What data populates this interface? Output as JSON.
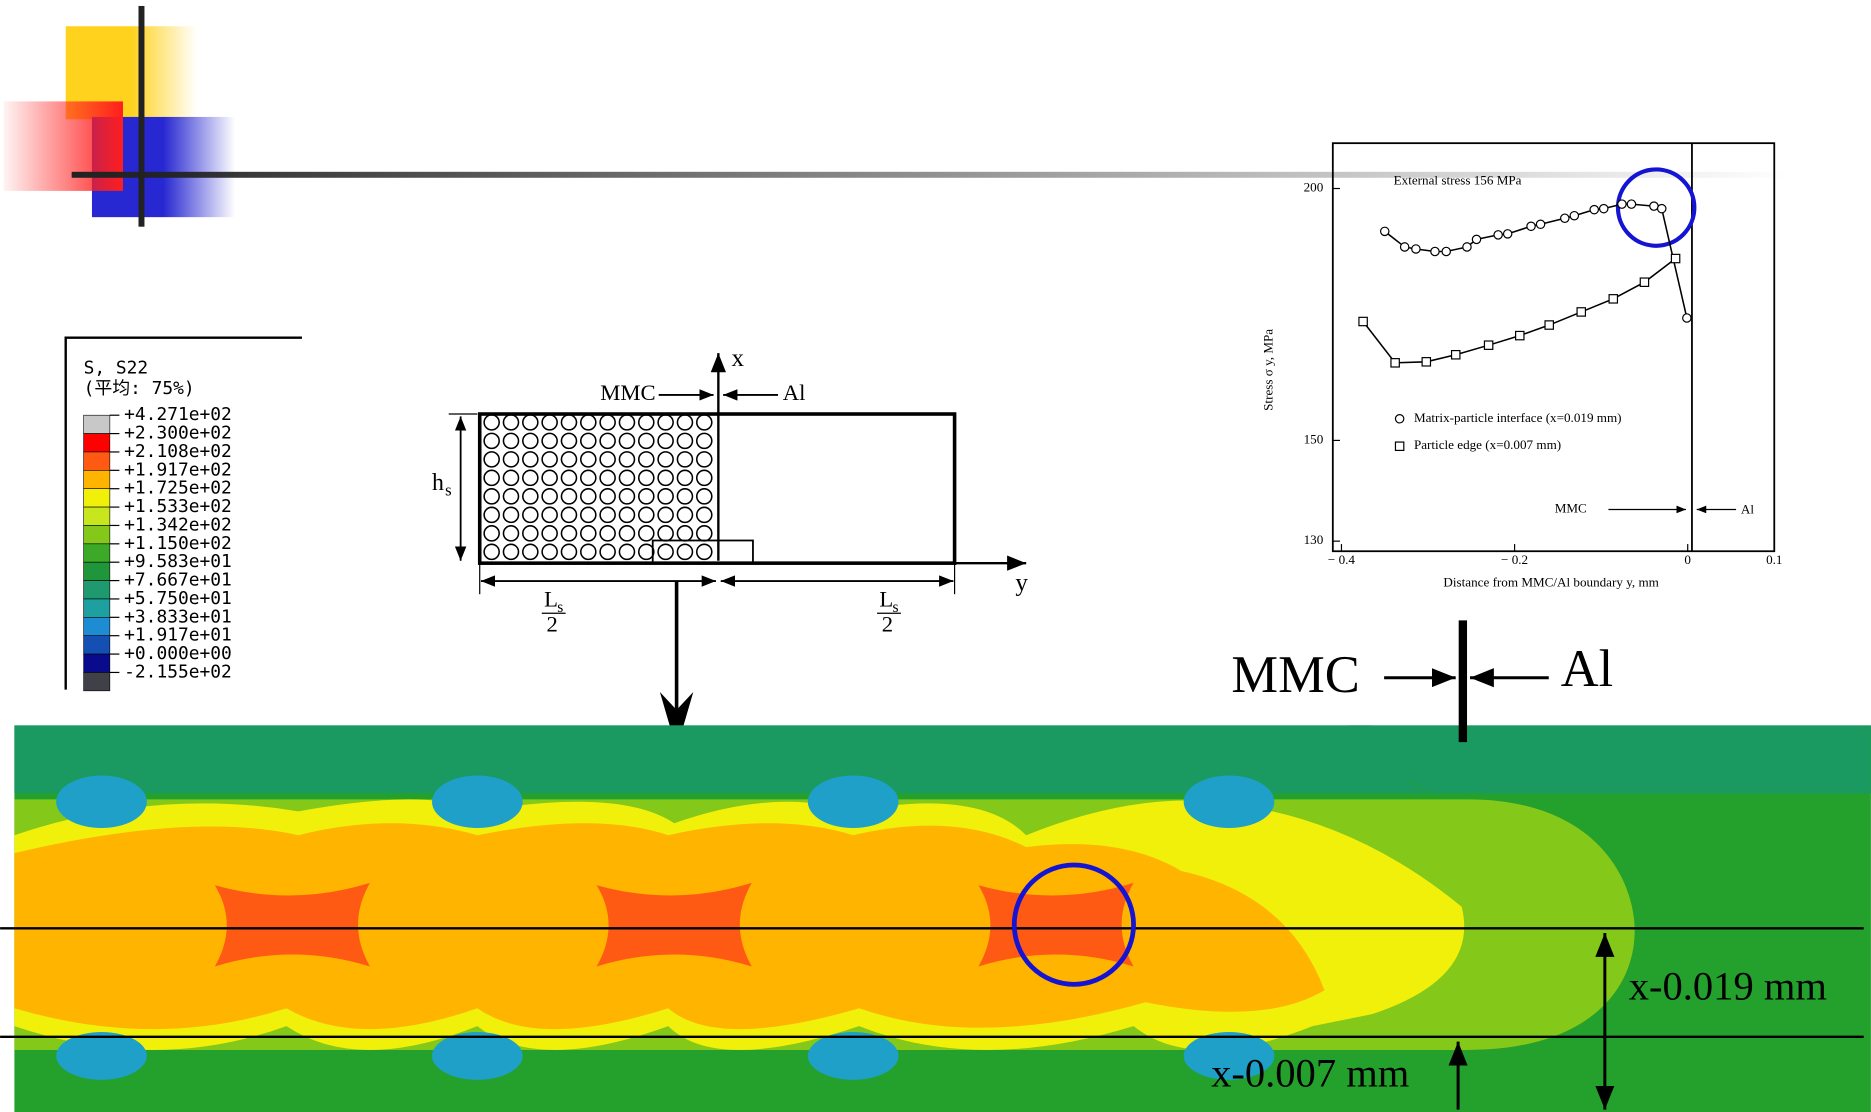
{
  "contour_legend": {
    "title": "S, S22",
    "subtitle": "(平均: 75%)",
    "labels": [
      "+4.271e+02",
      "+2.300e+02",
      "+2.108e+02",
      "+1.917e+02",
      "+1.725e+02",
      "+1.533e+02",
      "+1.342e+02",
      "+1.150e+02",
      "+9.583e+01",
      "+7.667e+01",
      "+5.750e+01",
      "+3.833e+01",
      "+1.917e+01",
      "+0.000e+00",
      "-2.155e+02"
    ],
    "colors": [
      "#c8c8c8",
      "#ff0000",
      "#ff5a14",
      "#ffb400",
      "#f0f00a",
      "#c8e61e",
      "#84c81a",
      "#3caa28",
      "#20963c",
      "#1e9a6e",
      "#1ea0a0",
      "#1e8cd2",
      "#1450b4",
      "#0a0a8c",
      "#404048"
    ]
  },
  "schematic": {
    "mmc": "MMC",
    "al": "Al",
    "x_axis": "x",
    "y_axis": "y",
    "h": "h",
    "h_sub": "s",
    "l_left": {
      "l": "L",
      "sub": "s",
      "den": "2"
    },
    "l_right": {
      "l": "L",
      "sub": "s",
      "den": "2"
    }
  },
  "contour_annotations": {
    "mmc": "MMC",
    "al": "Al",
    "upper_line": "x-0.019 mm",
    "lower_line": "x-0.007 mm"
  },
  "chart_data": {
    "type": "line",
    "annotation": "External stress 156 MPa",
    "mmc_label": "MMC",
    "al_label": "Al",
    "x_label": "Distance from MMC/Al boundary  y,  mm",
    "y_label": "Stress   σ y,   MPa",
    "xlim": [
      -0.41,
      0.1
    ],
    "ylim": [
      128,
      209
    ],
    "xticks": [
      {
        "value": -0.4,
        "label": "− 0.4"
      },
      {
        "value": -0.2,
        "label": "− 0.2"
      },
      0,
      0.1
    ],
    "yticks": [
      130,
      150,
      200
    ],
    "series": [
      {
        "name": "Matrix-particle interface (x=0.019 mm)",
        "color": "#000000",
        "marker": "circle",
        "x": [
          -0.35,
          -0.327,
          -0.314,
          -0.292,
          -0.279,
          -0.255,
          -0.244,
          -0.219,
          -0.208,
          -0.181,
          -0.17,
          -0.142,
          -0.131,
          -0.108,
          -0.097,
          -0.076,
          -0.065,
          -0.039,
          -0.03,
          -0.001
        ],
        "values": [
          191.5,
          188.4,
          188.0,
          187.5,
          187.5,
          188.4,
          189.9,
          190.8,
          191.0,
          192.5,
          192.9,
          194.1,
          194.6,
          195.8,
          196.0,
          196.9,
          196.9,
          196.5,
          196.0,
          174.3
        ]
      },
      {
        "name": "Particle edge (x=0.007 mm)",
        "color": "#000000",
        "marker": "square",
        "x": [
          -0.375,
          -0.338,
          -0.302,
          -0.268,
          -0.23,
          -0.194,
          -0.16,
          -0.123,
          -0.086,
          -0.05,
          -0.014
        ],
        "values": [
          173.6,
          165.4,
          165.6,
          167.0,
          168.9,
          170.8,
          172.9,
          175.5,
          178.1,
          181.4,
          186.1
        ]
      }
    ]
  }
}
